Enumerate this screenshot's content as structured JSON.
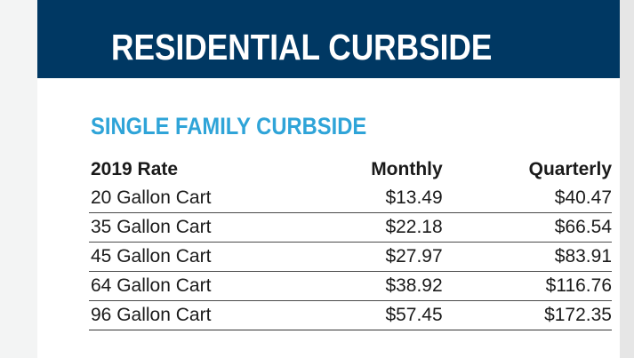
{
  "banner": {
    "title": "RESIDENTIAL CURBSIDE"
  },
  "section": {
    "title": "SINGLE FAMILY CURBSIDE"
  },
  "table": {
    "columns": [
      "2019 Rate",
      "Monthly",
      "Quarterly"
    ],
    "rows": [
      {
        "label": "20 Gallon Cart",
        "monthly": "$13.49",
        "quarterly": "$40.47"
      },
      {
        "label": "35 Gallon Cart",
        "monthly": "$22.18",
        "quarterly": "$66.54"
      },
      {
        "label": "45 Gallon Cart",
        "monthly": "$27.97",
        "quarterly": "$83.91"
      },
      {
        "label": "64 Gallon Cart",
        "monthly": "$38.92",
        "quarterly": "$116.76"
      },
      {
        "label": "96 Gallon Cart",
        "monthly": "$57.45",
        "quarterly": "$172.35"
      }
    ]
  },
  "colors": {
    "banner_bg": "#003863",
    "banner_text": "#ffffff",
    "section_title": "#2fa4d8",
    "body_text": "#1a1a1a"
  }
}
